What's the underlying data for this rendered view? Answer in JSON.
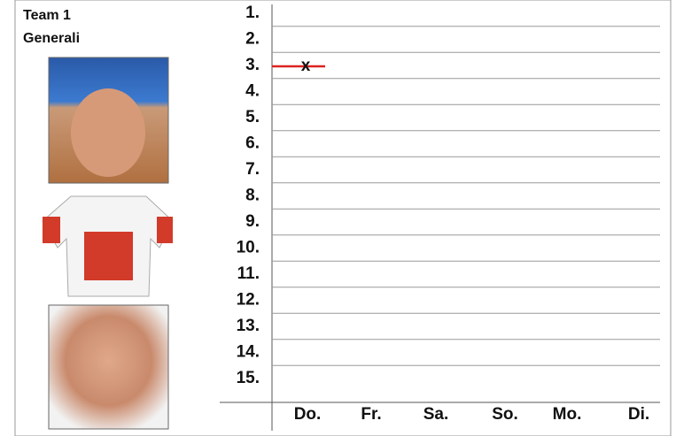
{
  "header": {
    "team": "Team 1",
    "sponsor": "Generali"
  },
  "ranks": [
    "1.",
    "2.",
    "3.",
    "4.",
    "5.",
    "6.",
    "7.",
    "8.",
    "9.",
    "10.",
    "11.",
    "12.",
    "13.",
    "14.",
    "15."
  ],
  "days": [
    "Do.",
    "Fr.",
    "Sa.",
    "So.",
    "Mo.",
    "Di."
  ],
  "marks": [
    {
      "day": "Do.",
      "rank": "3.",
      "label": "x"
    }
  ]
}
